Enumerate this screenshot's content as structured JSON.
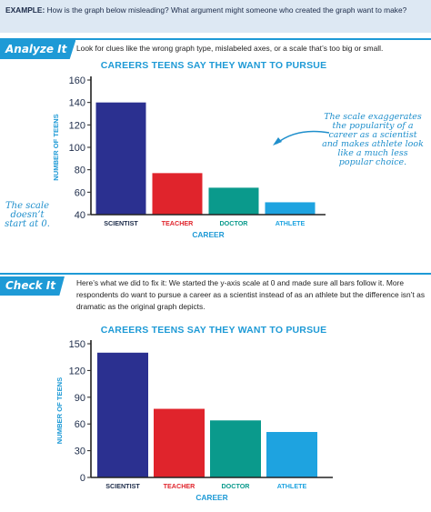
{
  "example": {
    "label": "EXAMPLE:",
    "question": "How is the graph below misleading? What argument might someone who created the graph want to make?"
  },
  "analyze": {
    "badge": "Analyze It",
    "instructions": "Look for clues like the wrong graph type, mislabeled axes, or a scale that’s too big or small."
  },
  "annotations": {
    "scale_note": "The scale exaggerates the popularity of a career as a scientist and makes athlete look like a much less popular choice.",
    "zero_note": "The scale doesn’t start at 0."
  },
  "check": {
    "badge": "Check It",
    "line1": "Here’s what we did to fix it: We started the y-axis scale at 0 and made sure all bars follow it.",
    "line2": "More respondents do want to pursue a career as a scientist instead of as an athlete but the difference isn’t as dramatic as the original graph depicts."
  },
  "colors": {
    "accent": "#1e9ad6",
    "scientist": "#2b3090",
    "teacher": "#e0242c",
    "doctor": "#0a9a8c",
    "athlete": "#1ea3e0"
  },
  "chart_data": [
    {
      "type": "bar",
      "title": "CAREERS TEENS SAY THEY WANT TO PURSUE",
      "xlabel": "CAREER",
      "ylabel": "NUMBER OF TEENS",
      "categories": [
        "SCIENTIST",
        "TEACHER",
        "DOCTOR",
        "ATHLETE"
      ],
      "values": [
        140,
        77,
        64,
        51
      ],
      "ylim": [
        40,
        160
      ],
      "yticks": [
        "40",
        "60",
        "80",
        "100",
        "120",
        "140",
        "160"
      ],
      "grid": false
    },
    {
      "type": "bar",
      "title": "CAREERS TEENS SAY THEY WANT TO PURSUE",
      "xlabel": "CAREER",
      "ylabel": "NUMBER OF TEENS",
      "categories": [
        "SCIENTIST",
        "TEACHER",
        "DOCTOR",
        "ATHLETE"
      ],
      "values": [
        140,
        77,
        64,
        51
      ],
      "ylim": [
        0,
        150
      ],
      "yticks": [
        "0",
        "30",
        "60",
        "90",
        "120",
        "150"
      ],
      "grid": false
    }
  ]
}
